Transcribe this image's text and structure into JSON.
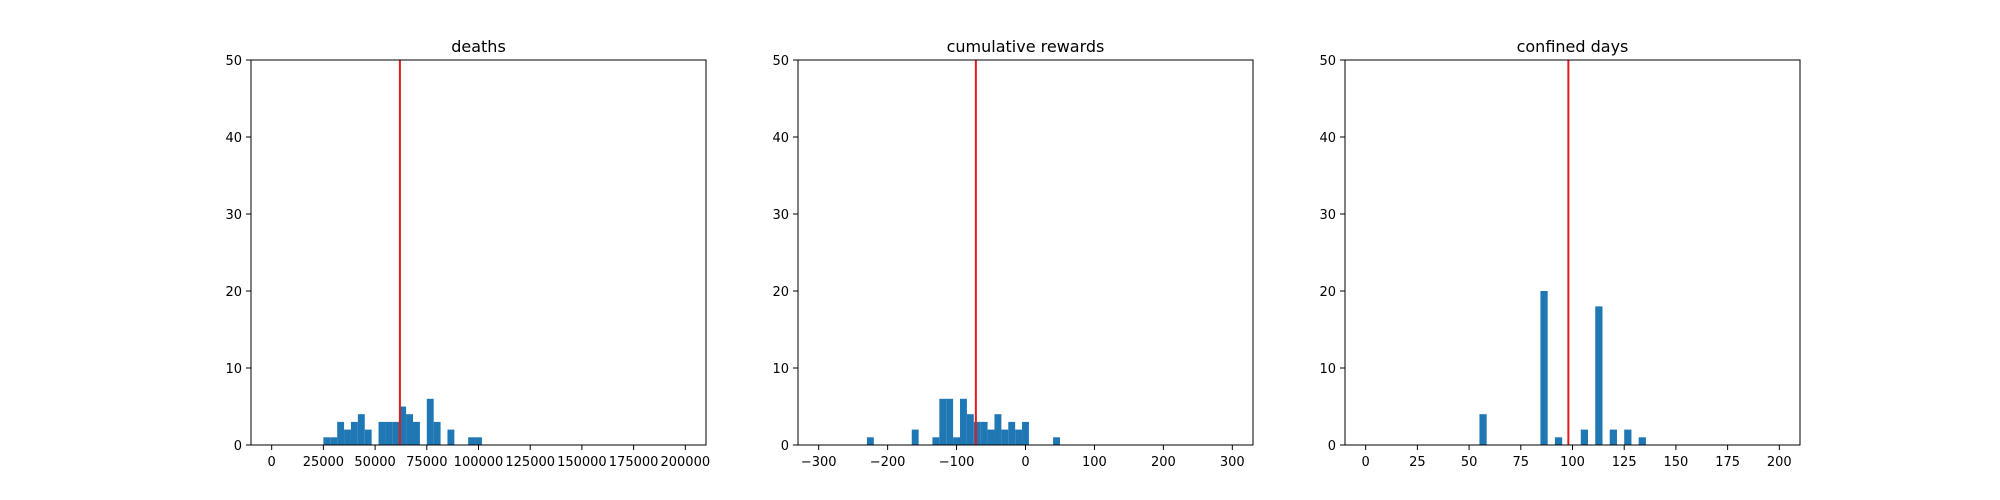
{
  "chart_data": [
    {
      "type": "bar",
      "title": "deaths",
      "xlabel": "",
      "ylabel": "",
      "xlim": [
        -10000,
        210000
      ],
      "ylim": [
        0,
        50
      ],
      "xticks": [
        0,
        25000,
        50000,
        75000,
        100000,
        125000,
        150000,
        175000,
        200000
      ],
      "xtick_labels": [
        "0",
        "25000",
        "50000",
        "75000",
        "100000",
        "125000",
        "150000",
        "175000",
        "200000"
      ],
      "yticks": [
        0,
        10,
        20,
        30,
        40,
        50
      ],
      "ytick_labels": [
        "0",
        "10",
        "20",
        "30",
        "40",
        "50"
      ],
      "bin_width": 3333,
      "bins": [
        {
          "x": 25000,
          "count": 1
        },
        {
          "x": 28333,
          "count": 1
        },
        {
          "x": 31667,
          "count": 3
        },
        {
          "x": 35000,
          "count": 2
        },
        {
          "x": 38333,
          "count": 3
        },
        {
          "x": 41667,
          "count": 4
        },
        {
          "x": 45000,
          "count": 2
        },
        {
          "x": 51667,
          "count": 3
        },
        {
          "x": 55000,
          "count": 3
        },
        {
          "x": 58333,
          "count": 3
        },
        {
          "x": 61667,
          "count": 5
        },
        {
          "x": 65000,
          "count": 4
        },
        {
          "x": 68333,
          "count": 3
        },
        {
          "x": 75000,
          "count": 6
        },
        {
          "x": 78333,
          "count": 3
        },
        {
          "x": 85000,
          "count": 2
        },
        {
          "x": 95000,
          "count": 1
        },
        {
          "x": 98333,
          "count": 1
        }
      ],
      "mean_line": 62000,
      "line_color": "#e41a1c",
      "bar_color": "#1f77b4"
    },
    {
      "type": "bar",
      "title": "cumulative rewards",
      "xlabel": "",
      "ylabel": "",
      "xlim": [
        -330,
        330
      ],
      "ylim": [
        0,
        50
      ],
      "xticks": [
        -300,
        -200,
        -100,
        0,
        100,
        200,
        300
      ],
      "xtick_labels": [
        "−300",
        "−200",
        "−100",
        "0",
        "100",
        "200",
        "300"
      ],
      "yticks": [
        0,
        10,
        20,
        30,
        40,
        50
      ],
      "ytick_labels": [
        "0",
        "10",
        "20",
        "30",
        "40",
        "50"
      ],
      "bin_width": 10,
      "bins": [
        {
          "x": -230,
          "count": 1
        },
        {
          "x": -165,
          "count": 2
        },
        {
          "x": -135,
          "count": 1
        },
        {
          "x": -125,
          "count": 6
        },
        {
          "x": -115,
          "count": 6
        },
        {
          "x": -105,
          "count": 1
        },
        {
          "x": -95,
          "count": 6
        },
        {
          "x": -85,
          "count": 4
        },
        {
          "x": -75,
          "count": 3
        },
        {
          "x": -65,
          "count": 3
        },
        {
          "x": -55,
          "count": 2
        },
        {
          "x": -45,
          "count": 4
        },
        {
          "x": -35,
          "count": 2
        },
        {
          "x": -25,
          "count": 3
        },
        {
          "x": -15,
          "count": 2
        },
        {
          "x": -5,
          "count": 3
        },
        {
          "x": 40,
          "count": 1
        }
      ],
      "mean_line": -72,
      "line_color": "#e41a1c",
      "bar_color": "#1f77b4"
    },
    {
      "type": "bar",
      "title": "confined days",
      "xlabel": "",
      "ylabel": "",
      "xlim": [
        -10,
        210
      ],
      "ylim": [
        0,
        50
      ],
      "xticks": [
        0,
        25,
        50,
        75,
        100,
        125,
        150,
        175,
        200
      ],
      "xtick_labels": [
        "0",
        "25",
        "50",
        "75",
        "100",
        "125",
        "150",
        "175",
        "200"
      ],
      "yticks": [
        0,
        10,
        20,
        30,
        40,
        50
      ],
      "ytick_labels": [
        "0",
        "10",
        "20",
        "30",
        "40",
        "50"
      ],
      "bin_width": 3.5,
      "bins": [
        {
          "x": 55,
          "count": 4
        },
        {
          "x": 84.5,
          "count": 20
        },
        {
          "x": 91.5,
          "count": 1
        },
        {
          "x": 104,
          "count": 2
        },
        {
          "x": 111,
          "count": 18
        },
        {
          "x": 118,
          "count": 2
        },
        {
          "x": 125,
          "count": 2
        },
        {
          "x": 132,
          "count": 1
        }
      ],
      "mean_line": 98,
      "line_color": "#e41a1c",
      "bar_color": "#1f77b4"
    }
  ]
}
